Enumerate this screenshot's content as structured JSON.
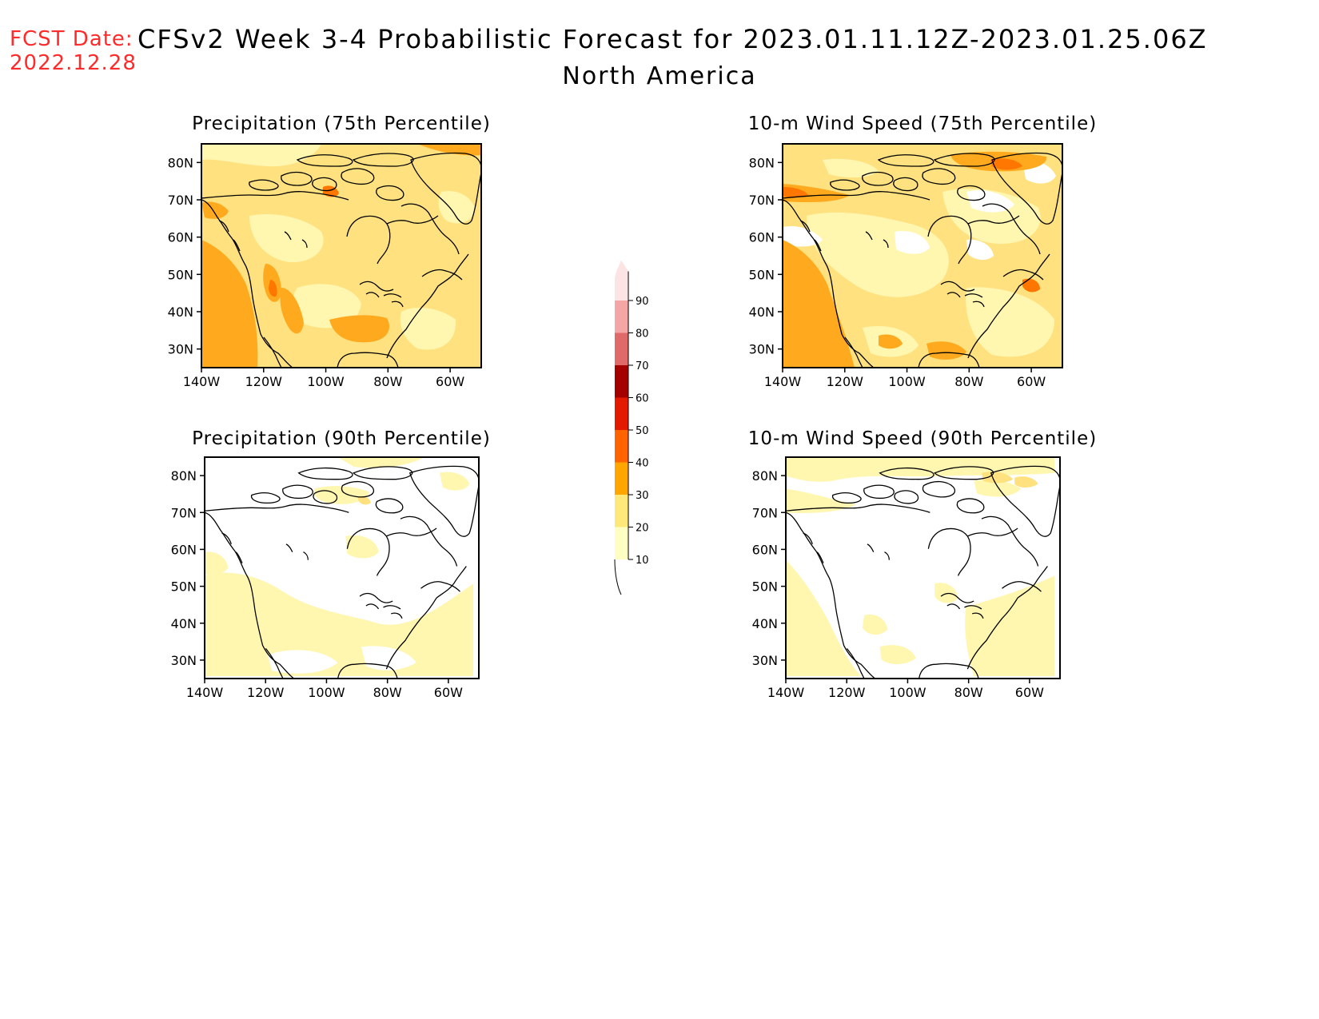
{
  "header": {
    "fcst_label": "FCST Date:",
    "fcst_date": "2022.12.28",
    "title": "CFSv2 Week 3-4 Probabilistic Forecast for 2023.01.11.12Z-2023.01.25.06Z",
    "region": "North America"
  },
  "panels": [
    {
      "id": "precip-75",
      "title": "Precipitation (75th Percentile)",
      "dominant_category": "20-30",
      "xticks": [
        "140W",
        "120W",
        "100W",
        "80W",
        "60W"
      ],
      "yticks": [
        "80N",
        "70N",
        "60N",
        "50N",
        "40N",
        "30N"
      ]
    },
    {
      "id": "wind-75",
      "title": "10-m Wind Speed (75th Percentile)",
      "dominant_category": "20-30",
      "xticks": [
        "140W",
        "120W",
        "100W",
        "80W",
        "60W"
      ],
      "yticks": [
        "80N",
        "70N",
        "60N",
        "50N",
        "40N",
        "30N"
      ]
    },
    {
      "id": "precip-90",
      "title": "Precipitation (90th Percentile)",
      "dominant_category": "<10",
      "xticks": [
        "140W",
        "120W",
        "100W",
        "80W",
        "60W"
      ],
      "yticks": [
        "80N",
        "70N",
        "60N",
        "50N",
        "40N",
        "30N"
      ]
    },
    {
      "id": "wind-90",
      "title": "10-m Wind Speed (90th Percentile)",
      "dominant_category": "<10",
      "xticks": [
        "140W",
        "120W",
        "100W",
        "80W",
        "60W"
      ],
      "yticks": [
        "80N",
        "70N",
        "60N",
        "50N",
        "40N",
        "30N"
      ]
    }
  ],
  "colorbar": {
    "labels": [
      "10",
      "20",
      "30",
      "40",
      "50",
      "60",
      "70",
      "80",
      "90"
    ],
    "colors": [
      "#ffffc4",
      "#ffe87a",
      "#ffa600",
      "#ff6400",
      "#e41a00",
      "#a50000",
      "#e06a6a",
      "#f4a6a6",
      "#fde4e4"
    ]
  },
  "palette": {
    "lt10": "#ffffff",
    "c10_20": "#fff6b0",
    "c20_30": "#ffe27f",
    "c30_40": "#ffaa1e",
    "c40_50": "#ff7700",
    "title_red": "#ff2a2a"
  }
}
